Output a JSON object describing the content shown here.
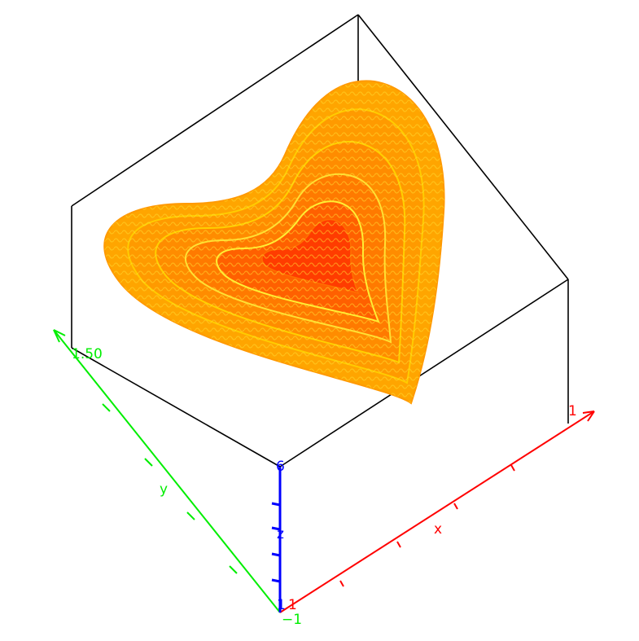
{
  "chart_data": {
    "type": "surface3d",
    "shape": "heart",
    "layers": 6,
    "colormap": [
      "#ff3300",
      "#ff6a00",
      "#ff9900",
      "#ffcc00",
      "#ffee33"
    ],
    "axes": {
      "x": {
        "label": "x",
        "tick_end": "1",
        "color": "#ff0000"
      },
      "y": {
        "label": "y",
        "tick_start": "1.50",
        "color": "#00ee00"
      },
      "z": {
        "label": "z",
        "tick_top": "6",
        "tick_bottom": "1",
        "color": "#0000ff"
      },
      "origin_label": "−1"
    },
    "bounding_box": true
  }
}
